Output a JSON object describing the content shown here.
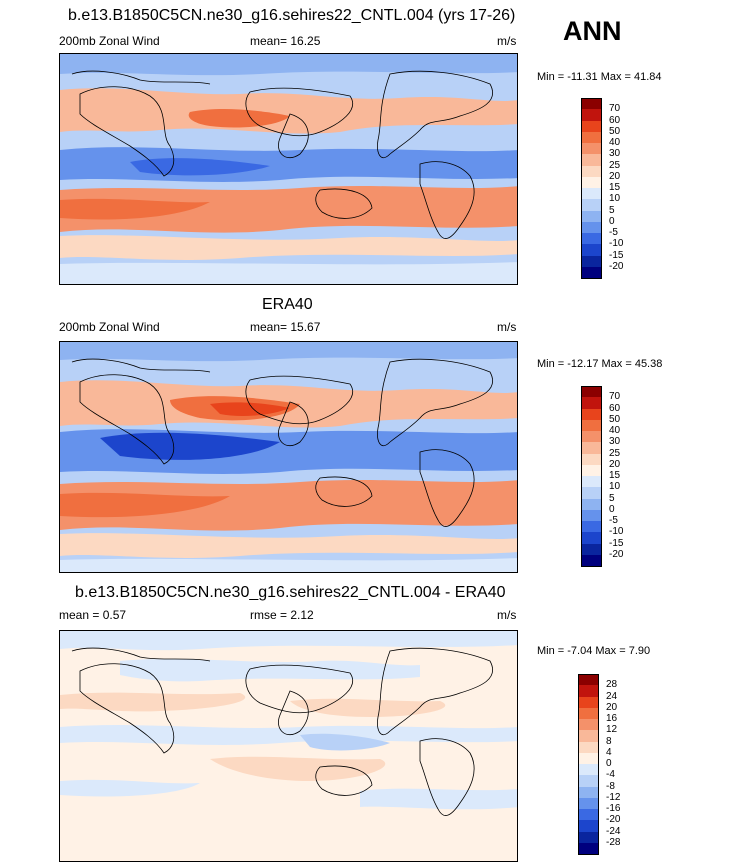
{
  "season": "ANN",
  "panels": [
    {
      "id": "model",
      "title": "b.e13.B1850C5CN.ne30_g16.sehires22_CNTL.004 (yrs 17-26)",
      "left_label": "200mb Zonal Wind",
      "center_label": "mean=  16.25",
      "units": "m/s",
      "minmax": "Min = -11.31 Max =  41.84",
      "levels": [
        "70",
        "60",
        "50",
        "40",
        "30",
        "25",
        "20",
        "15",
        "10",
        "5",
        "0",
        "-5",
        "-10",
        "-15",
        "-20"
      ],
      "colors": [
        "#8b0000",
        "#c1140d",
        "#e8441c",
        "#f06f3f",
        "#f4916a",
        "#f9b899",
        "#fcd9c2",
        "#fff2e6",
        "#dbe9fb",
        "#b8d1f7",
        "#8eb3f1",
        "#6592ec",
        "#3a69e3",
        "#1c45cc",
        "#0a259e",
        "#00007e"
      ]
    },
    {
      "id": "obs",
      "title": "ERA40",
      "left_label": "200mb Zonal Wind",
      "center_label": "mean=  15.67",
      "units": "m/s",
      "minmax": "Min = -12.17 Max =  45.38",
      "levels": [
        "70",
        "60",
        "50",
        "40",
        "30",
        "25",
        "20",
        "15",
        "10",
        "5",
        "0",
        "-5",
        "-10",
        "-15",
        "-20"
      ],
      "colors": [
        "#8b0000",
        "#c1140d",
        "#e8441c",
        "#f06f3f",
        "#f4916a",
        "#f9b899",
        "#fcd9c2",
        "#fff2e6",
        "#dbe9fb",
        "#b8d1f7",
        "#8eb3f1",
        "#6592ec",
        "#3a69e3",
        "#1c45cc",
        "#0a259e",
        "#00007e"
      ]
    },
    {
      "id": "diff",
      "title": "b.e13.B1850C5CN.ne30_g16.sehires22_CNTL.004 - ERA40",
      "left_label": "mean =  0.57",
      "center_label": "rmse =  2.12",
      "units": "m/s",
      "minmax": "Min = -7.04 Max =  7.90",
      "levels": [
        "28",
        "24",
        "20",
        "16",
        "12",
        "8",
        "4",
        "0",
        "-4",
        "-8",
        "-12",
        "-16",
        "-20",
        "-24",
        "-28"
      ],
      "colors": [
        "#8b0000",
        "#c1140d",
        "#e8441c",
        "#f06f3f",
        "#f4916a",
        "#f9b899",
        "#fcd9c2",
        "#fff2e6",
        "#dbe9fb",
        "#b8d1f7",
        "#8eb3f1",
        "#6592ec",
        "#3a69e3",
        "#1c45cc",
        "#0a259e",
        "#00007e"
      ]
    }
  ]
}
